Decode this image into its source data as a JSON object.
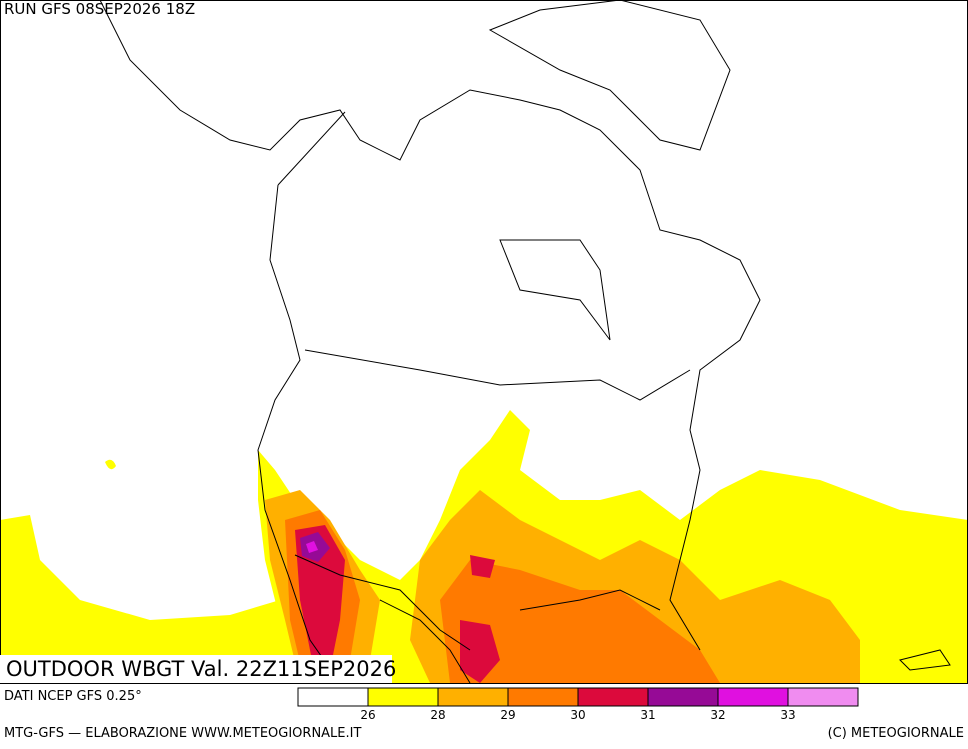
{
  "header": {
    "run": "RUN GFS 08SEP2026 18Z"
  },
  "map": {
    "title": "OUTDOOR WBGT Val. 22Z11SEP2026"
  },
  "legend": {
    "ticks": [
      26,
      28,
      29,
      30,
      31,
      32,
      33
    ],
    "colors": [
      "#ffffff",
      "#ffff00",
      "#ffb000",
      "#ff7a00",
      "#dc0a3c",
      "#960a96",
      "#e010e0",
      "#f08cf0"
    ]
  },
  "footer": {
    "source": "DATI NCEP GFS 0.25°",
    "credit": "MTG-GFS — ELABORAZIONE WWW.METEOGIORNALE.IT",
    "copyright": "(C) METEOGIORNALE"
  }
}
